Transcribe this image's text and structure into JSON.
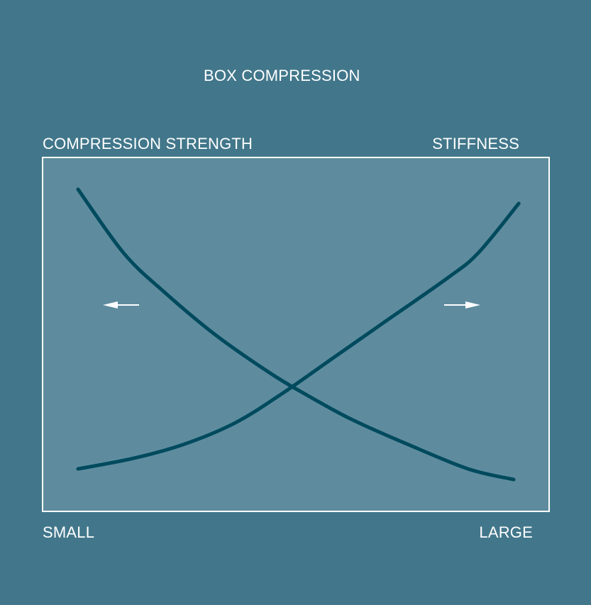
{
  "colors": {
    "background": "#42778b",
    "plot_fill": "#5e8c9e",
    "curve": "#004a5e",
    "text": "#ffffff"
  },
  "chart_data": {
    "type": "line",
    "title": "BOX COMPRESSION",
    "ylabel_left": "COMPRESSION STRENGTH",
    "ylabel_right": "STIFFNESS",
    "xlabel_min": "SMALL",
    "xlabel_max": "LARGE",
    "xlim": [
      0,
      1
    ],
    "ylim": [
      0,
      1
    ],
    "grid": false,
    "series": [
      {
        "axis": "left",
        "direction_arrow": "left",
        "x": [
          0.07,
          0.16,
          0.24,
          0.34,
          0.45,
          0.52,
          0.61,
          0.72,
          0.84,
          0.93
        ],
        "y": [
          0.91,
          0.73,
          0.62,
          0.5,
          0.39,
          0.33,
          0.26,
          0.19,
          0.12,
          0.09
        ]
      },
      {
        "axis": "right",
        "direction_arrow": "right",
        "x": [
          0.07,
          0.18,
          0.28,
          0.38,
          0.47,
          0.57,
          0.67,
          0.8,
          0.86,
          0.94
        ],
        "y": [
          0.12,
          0.15,
          0.19,
          0.25,
          0.33,
          0.43,
          0.53,
          0.66,
          0.73,
          0.87
        ]
      }
    ]
  }
}
